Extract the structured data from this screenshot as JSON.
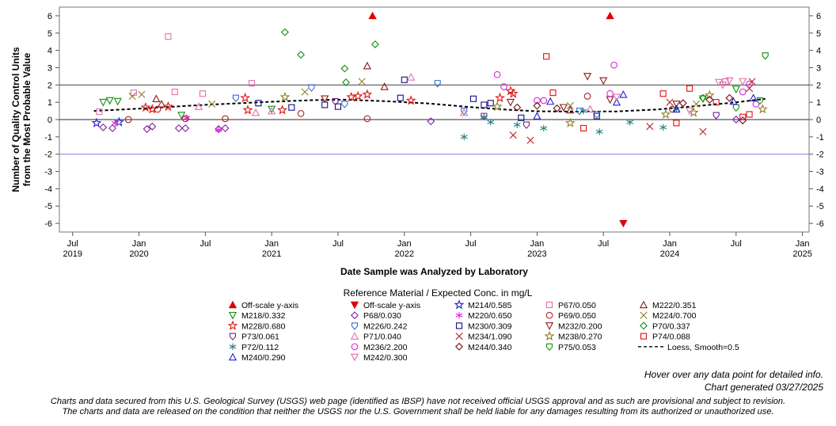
{
  "chart_data": {
    "type": "scatter",
    "title": "",
    "xlabel": "Date Sample was Analyzed by Laboratory",
    "ylabel_lines": [
      "Number of Quality Control Units",
      "from the Most Probable Value"
    ],
    "ylim": [
      -6.5,
      6.5
    ],
    "yticks": [
      6,
      5,
      4,
      3,
      2,
      1,
      0,
      -1,
      -2,
      -3,
      -4,
      -5,
      -6
    ],
    "xlim": [
      2019.4,
      2025.05
    ],
    "xticks": [
      {
        "x": 2019.5,
        "label": "Jul",
        "year": "2019"
      },
      {
        "x": 2020.0,
        "label": "Jan",
        "year": "2020"
      },
      {
        "x": 2020.5,
        "label": "Jul",
        "year": ""
      },
      {
        "x": 2021.0,
        "label": "Jan",
        "year": "2021"
      },
      {
        "x": 2021.5,
        "label": "Jul",
        "year": ""
      },
      {
        "x": 2022.0,
        "label": "Jan",
        "year": "2022"
      },
      {
        "x": 2022.5,
        "label": "Jul",
        "year": ""
      },
      {
        "x": 2023.0,
        "label": "Jan",
        "year": "2023"
      },
      {
        "x": 2023.5,
        "label": "Jul",
        "year": ""
      },
      {
        "x": 2024.0,
        "label": "Jan",
        "year": "2024"
      },
      {
        "x": 2024.5,
        "label": "Jul",
        "year": ""
      },
      {
        "x": 2025.0,
        "label": "Jan",
        "year": "2025"
      }
    ],
    "reference_lines": [
      {
        "y": 2,
        "color": "#555555"
      },
      {
        "y": 0,
        "color": "#555555"
      },
      {
        "y": -2,
        "color": "#8c8cf0"
      }
    ],
    "legend_title": "Reference Material / Expected Conc. in mg/L",
    "legend": [
      {
        "id": "offup",
        "label": "Off-scale y-axis",
        "marker": "tri-up-filled",
        "color": "#e00000"
      },
      {
        "id": "offdown",
        "label": "Off-scale y-axis",
        "marker": "tri-down-filled",
        "color": "#e00000"
      },
      {
        "id": "M214",
        "label": "M214/0.585",
        "marker": "star",
        "color": "#2020d0"
      },
      {
        "id": "P67",
        "label": "P67/0.050",
        "marker": "square",
        "color": "#e070b0"
      },
      {
        "id": "M222",
        "label": "M222/0.351",
        "marker": "tri-up",
        "color": "#8b1a1a"
      },
      {
        "id": "M218",
        "label": "M218/0.332",
        "marker": "tri-down",
        "color": "#109010"
      },
      {
        "id": "P68",
        "label": "P68/0.030",
        "marker": "diamond",
        "color": "#8020a0"
      },
      {
        "id": "M220",
        "label": "M220/0.650",
        "marker": "asterisk",
        "color": "#e020e0"
      },
      {
        "id": "P69",
        "label": "P69/0.050",
        "marker": "circle",
        "color": "#b02020"
      },
      {
        "id": "M224",
        "label": "M224/0.700",
        "marker": "x",
        "color": "#908020"
      },
      {
        "id": "M228",
        "label": "M228/0.680",
        "marker": "star",
        "color": "#e01010"
      },
      {
        "id": "M226",
        "label": "M226/0.242",
        "marker": "shield",
        "color": "#3070d0"
      },
      {
        "id": "M230",
        "label": "M230/0.309",
        "marker": "square",
        "color": "#101080"
      },
      {
        "id": "M232",
        "label": "M232/0.200",
        "marker": "tri-down",
        "color": "#8b1a1a"
      },
      {
        "id": "P70",
        "label": "P70/0.337",
        "marker": "diamond",
        "color": "#109010"
      },
      {
        "id": "P73",
        "label": "P73/0.061",
        "marker": "shield",
        "color": "#702090"
      },
      {
        "id": "P71",
        "label": "P71/0.040",
        "marker": "tri-up",
        "color": "#e070b0"
      },
      {
        "id": "M234",
        "label": "M234/1.090",
        "marker": "x",
        "color": "#c02020"
      },
      {
        "id": "M238",
        "label": "M238/0.270",
        "marker": "star",
        "color": "#908020"
      },
      {
        "id": "P74",
        "label": "P74/0.088",
        "marker": "square",
        "color": "#e01010"
      },
      {
        "id": "P72",
        "label": "P72/0.112",
        "marker": "asterisk",
        "color": "#208080"
      },
      {
        "id": "M236",
        "label": "M236/2.200",
        "marker": "circle",
        "color": "#e020e0"
      },
      {
        "id": "M244",
        "label": "M244/0.340",
        "marker": "diamond",
        "color": "#701010"
      },
      {
        "id": "P75",
        "label": "P75/0.053",
        "marker": "shield",
        "color": "#109010"
      },
      {
        "id": "loess",
        "label": "Loess, Smooth=0.5",
        "marker": "dashline",
        "color": "#000000"
      },
      {
        "id": "M240",
        "label": "M240/0.290",
        "marker": "tri-up",
        "color": "#2020d0"
      },
      {
        "id": "M242",
        "label": "M242/0.300",
        "marker": "tri-down",
        "color": "#e070b0"
      }
    ],
    "loess": [
      [
        2019.66,
        0.5
      ],
      [
        2020.0,
        0.63
      ],
      [
        2020.5,
        0.85
      ],
      [
        2020.9,
        1.0
      ],
      [
        2021.3,
        1.12
      ],
      [
        2021.55,
        1.15
      ],
      [
        2021.9,
        1.05
      ],
      [
        2022.2,
        0.92
      ],
      [
        2022.5,
        0.72
      ],
      [
        2022.8,
        0.56
      ],
      [
        2023.0,
        0.48
      ],
      [
        2023.3,
        0.46
      ],
      [
        2023.6,
        0.47
      ],
      [
        2023.9,
        0.58
      ],
      [
        2024.2,
        0.78
      ],
      [
        2024.5,
        1.0
      ],
      [
        2024.72,
        1.2
      ]
    ],
    "points": [
      {
        "s": "M214",
        "x": 2019.68,
        "y": -0.2
      },
      {
        "s": "M214",
        "x": 2019.85,
        "y": -0.15
      },
      {
        "s": "M218",
        "x": 2019.73,
        "y": 1.0
      },
      {
        "s": "M218",
        "x": 2019.78,
        "y": 1.1
      },
      {
        "s": "M218",
        "x": 2019.84,
        "y": 1.05
      },
      {
        "s": "M218",
        "x": 2020.32,
        "y": 0.25
      },
      {
        "s": "M218",
        "x": 2021.0,
        "y": 0.6
      },
      {
        "s": "M218",
        "x": 2024.25,
        "y": 1.2
      },
      {
        "s": "M218",
        "x": 2024.5,
        "y": 1.75
      },
      {
        "s": "P67",
        "x": 2019.7,
        "y": 0.45
      },
      {
        "s": "P67",
        "x": 2019.96,
        "y": 1.55
      },
      {
        "s": "P67",
        "x": 2020.22,
        "y": 4.8
      },
      {
        "s": "P67",
        "x": 2020.27,
        "y": 1.6
      },
      {
        "s": "P67",
        "x": 2020.48,
        "y": 1.5
      },
      {
        "s": "P67",
        "x": 2020.85,
        "y": 2.1
      },
      {
        "s": "P67",
        "x": 2024.42,
        "y": 2.2
      },
      {
        "s": "P68",
        "x": 2019.73,
        "y": -0.45
      },
      {
        "s": "P68",
        "x": 2019.8,
        "y": -0.5
      },
      {
        "s": "P68",
        "x": 2020.06,
        "y": -0.55
      },
      {
        "s": "P68",
        "x": 2020.1,
        "y": -0.4
      },
      {
        "s": "P68",
        "x": 2020.3,
        "y": -0.5
      },
      {
        "s": "P68",
        "x": 2020.35,
        "y": -0.5
      },
      {
        "s": "P68",
        "x": 2020.6,
        "y": -0.55
      },
      {
        "s": "P68",
        "x": 2020.65,
        "y": -0.5
      },
      {
        "s": "P68",
        "x": 2022.2,
        "y": -0.1
      },
      {
        "s": "P68",
        "x": 2024.5,
        "y": 0.0
      },
      {
        "s": "M220",
        "x": 2019.82,
        "y": -0.2
      },
      {
        "s": "M220",
        "x": 2020.6,
        "y": -0.6
      },
      {
        "s": "M220",
        "x": 2020.36,
        "y": 0.1
      },
      {
        "s": "P69",
        "x": 2019.92,
        "y": 0.0
      },
      {
        "s": "P69",
        "x": 2020.14,
        "y": 0.6
      },
      {
        "s": "P69",
        "x": 2020.35,
        "y": 0.05
      },
      {
        "s": "P69",
        "x": 2020.65,
        "y": 0.05
      },
      {
        "s": "P69",
        "x": 2021.22,
        "y": 0.35
      },
      {
        "s": "P69",
        "x": 2021.72,
        "y": 0.05
      },
      {
        "s": "P69",
        "x": 2023.38,
        "y": 1.35
      },
      {
        "s": "P69",
        "x": 2024.02,
        "y": 0.6
      },
      {
        "s": "M224",
        "x": 2019.95,
        "y": 1.35
      },
      {
        "s": "M224",
        "x": 2020.02,
        "y": 1.45
      },
      {
        "s": "M224",
        "x": 2020.55,
        "y": 0.9
      },
      {
        "s": "M224",
        "x": 2021.25,
        "y": 1.6
      },
      {
        "s": "M224",
        "x": 2021.68,
        "y": 2.2
      },
      {
        "s": "M224",
        "x": 2023.25,
        "y": 0.8
      },
      {
        "s": "M224",
        "x": 2024.2,
        "y": 0.9
      },
      {
        "s": "M222",
        "x": 2020.13,
        "y": 1.2
      },
      {
        "s": "M222",
        "x": 2020.17,
        "y": 0.9
      },
      {
        "s": "M222",
        "x": 2021.72,
        "y": 3.1
      },
      {
        "s": "M222",
        "x": 2021.85,
        "y": 1.9
      },
      {
        "s": "M222",
        "x": 2023.25,
        "y": 0.55
      },
      {
        "s": "M228",
        "x": 2020.05,
        "y": 0.7
      },
      {
        "s": "M228",
        "x": 2020.1,
        "y": 0.6
      },
      {
        "s": "M228",
        "x": 2020.22,
        "y": 0.75
      },
      {
        "s": "M228",
        "x": 2020.8,
        "y": 1.25
      },
      {
        "s": "M228",
        "x": 2020.82,
        "y": 0.55
      },
      {
        "s": "M228",
        "x": 2021.08,
        "y": 0.55
      },
      {
        "s": "M228",
        "x": 2021.6,
        "y": 1.3
      },
      {
        "s": "M228",
        "x": 2021.65,
        "y": 1.35
      },
      {
        "s": "M228",
        "x": 2021.72,
        "y": 1.45
      },
      {
        "s": "M228",
        "x": 2022.05,
        "y": 1.1
      },
      {
        "s": "M228",
        "x": 2022.72,
        "y": 1.25
      },
      {
        "s": "M228",
        "x": 2022.8,
        "y": 1.65
      },
      {
        "s": "M228",
        "x": 2022.82,
        "y": 1.5
      },
      {
        "s": "M226",
        "x": 2021.3,
        "y": 1.85
      },
      {
        "s": "M226",
        "x": 2022.25,
        "y": 2.1
      },
      {
        "s": "M226",
        "x": 2021.55,
        "y": 0.9
      },
      {
        "s": "M226",
        "x": 2022.45,
        "y": 0.5
      },
      {
        "s": "M226",
        "x": 2023.32,
        "y": 0.5
      },
      {
        "s": "M226",
        "x": 2023.45,
        "y": 0.3
      },
      {
        "s": "M226",
        "x": 2020.73,
        "y": 1.25
      },
      {
        "s": "M230",
        "x": 2020.9,
        "y": 0.95
      },
      {
        "s": "M230",
        "x": 2021.15,
        "y": 0.7
      },
      {
        "s": "M230",
        "x": 2021.4,
        "y": 0.85
      },
      {
        "s": "M230",
        "x": 2021.5,
        "y": 0.75
      },
      {
        "s": "M230",
        "x": 2021.97,
        "y": 1.25
      },
      {
        "s": "M230",
        "x": 2022.0,
        "y": 2.3
      },
      {
        "s": "M230",
        "x": 2022.52,
        "y": 1.2
      },
      {
        "s": "M230",
        "x": 2022.6,
        "y": 0.85
      },
      {
        "s": "M230",
        "x": 2022.65,
        "y": 0.95
      },
      {
        "s": "M230",
        "x": 2022.88,
        "y": 0.1
      },
      {
        "s": "M230",
        "x": 2023.45,
        "y": 0.2
      },
      {
        "s": "M232",
        "x": 2021.4,
        "y": 1.2
      },
      {
        "s": "M232",
        "x": 2022.8,
        "y": 1.0
      },
      {
        "s": "M232",
        "x": 2023.2,
        "y": 0.7
      },
      {
        "s": "M232",
        "x": 2023.38,
        "y": 2.5
      },
      {
        "s": "M232",
        "x": 2023.5,
        "y": 2.25
      },
      {
        "s": "M232",
        "x": 2023.55,
        "y": 1.15
      },
      {
        "s": "M232",
        "x": 2024.05,
        "y": 0.9
      },
      {
        "s": "P70",
        "x": 2021.1,
        "y": 5.05
      },
      {
        "s": "P70",
        "x": 2021.22,
        "y": 3.75
      },
      {
        "s": "P70",
        "x": 2021.55,
        "y": 2.95
      },
      {
        "s": "P70",
        "x": 2021.56,
        "y": 2.15
      },
      {
        "s": "P70",
        "x": 2021.78,
        "y": 4.35
      },
      {
        "s": "P70",
        "x": 2024.25,
        "y": 1.25
      },
      {
        "s": "P73",
        "x": 2021.48,
        "y": 1.05
      },
      {
        "s": "P73",
        "x": 2022.6,
        "y": 0.2
      },
      {
        "s": "P73",
        "x": 2022.92,
        "y": -0.3
      },
      {
        "s": "P73",
        "x": 2024.35,
        "y": 0.25
      },
      {
        "s": "P71",
        "x": 2020.45,
        "y": 0.75
      },
      {
        "s": "P71",
        "x": 2020.88,
        "y": 0.4
      },
      {
        "s": "P71",
        "x": 2021.0,
        "y": 0.5
      },
      {
        "s": "P71",
        "x": 2022.05,
        "y": 2.45
      },
      {
        "s": "P71",
        "x": 2022.45,
        "y": 0.4
      },
      {
        "s": "P71",
        "x": 2023.4,
        "y": 0.6
      },
      {
        "s": "M234",
        "x": 2022.82,
        "y": -0.9
      },
      {
        "s": "M234",
        "x": 2022.95,
        "y": -1.2
      },
      {
        "s": "M234",
        "x": 2023.85,
        "y": -0.4
      },
      {
        "s": "M234",
        "x": 2024.25,
        "y": -0.7
      },
      {
        "s": "M234",
        "x": 2024.62,
        "y": 2.2
      },
      {
        "s": "M234",
        "x": 2024.6,
        "y": 1.8
      },
      {
        "s": "M234",
        "x": 2024.0,
        "y": 1.0
      },
      {
        "s": "M238",
        "x": 2021.1,
        "y": 1.3
      },
      {
        "s": "M238",
        "x": 2022.7,
        "y": 0.75
      },
      {
        "s": "M238",
        "x": 2023.25,
        "y": -0.2
      },
      {
        "s": "M238",
        "x": 2023.97,
        "y": 0.3
      },
      {
        "s": "M238",
        "x": 2024.18,
        "y": 0.4
      },
      {
        "s": "M238",
        "x": 2024.3,
        "y": 1.4
      },
      {
        "s": "M238",
        "x": 2024.7,
        "y": 0.6
      },
      {
        "s": "P74",
        "x": 2023.07,
        "y": 3.65
      },
      {
        "s": "P74",
        "x": 2023.12,
        "y": 1.55
      },
      {
        "s": "P74",
        "x": 2023.35,
        "y": -0.5
      },
      {
        "s": "P74",
        "x": 2023.95,
        "y": 1.5
      },
      {
        "s": "P74",
        "x": 2024.05,
        "y": -0.2
      },
      {
        "s": "P74",
        "x": 2024.15,
        "y": 1.8
      },
      {
        "s": "P74",
        "x": 2024.35,
        "y": 1.0
      },
      {
        "s": "P74",
        "x": 2024.55,
        "y": 0.15
      },
      {
        "s": "P74",
        "x": 2024.6,
        "y": 0.3
      },
      {
        "s": "P72",
        "x": 2022.45,
        "y": -1.0
      },
      {
        "s": "P72",
        "x": 2022.6,
        "y": 0.15
      },
      {
        "s": "P72",
        "x": 2022.65,
        "y": -0.15
      },
      {
        "s": "P72",
        "x": 2022.85,
        "y": -0.3
      },
      {
        "s": "P72",
        "x": 2023.05,
        "y": -0.5
      },
      {
        "s": "P72",
        "x": 2023.35,
        "y": 0.5
      },
      {
        "s": "P72",
        "x": 2023.47,
        "y": -0.7
      },
      {
        "s": "P72",
        "x": 2023.7,
        "y": -0.15
      },
      {
        "s": "P72",
        "x": 2023.95,
        "y": -0.45
      },
      {
        "s": "P72",
        "x": 2024.05,
        "y": 0.6
      },
      {
        "s": "M236",
        "x": 2022.7,
        "y": 2.6
      },
      {
        "s": "M236",
        "x": 2022.75,
        "y": 1.9
      },
      {
        "s": "M236",
        "x": 2023.0,
        "y": 1.1
      },
      {
        "s": "M236",
        "x": 2023.05,
        "y": 1.1
      },
      {
        "s": "M236",
        "x": 2023.58,
        "y": 3.15
      },
      {
        "s": "M236",
        "x": 2023.55,
        "y": 1.5
      },
      {
        "s": "M236",
        "x": 2024.55,
        "y": 1.6
      },
      {
        "s": "M236",
        "x": 2024.6,
        "y": 2.05
      },
      {
        "s": "M236",
        "x": 2024.65,
        "y": 0.9
      },
      {
        "s": "M244",
        "x": 2022.85,
        "y": 0.7
      },
      {
        "s": "M244",
        "x": 2023.0,
        "y": 0.8
      },
      {
        "s": "M244",
        "x": 2023.15,
        "y": 0.65
      },
      {
        "s": "M244",
        "x": 2024.1,
        "y": 0.95
      },
      {
        "s": "M244",
        "x": 2024.3,
        "y": 1.15
      },
      {
        "s": "M244",
        "x": 2024.45,
        "y": 1.25
      },
      {
        "s": "M244",
        "x": 2024.55,
        "y": -0.05
      },
      {
        "s": "P75",
        "x": 2024.5,
        "y": 0.7
      },
      {
        "s": "P75",
        "x": 2024.72,
        "y": 3.7
      },
      {
        "s": "P75",
        "x": 2024.68,
        "y": 1.1
      },
      {
        "s": "M240",
        "x": 2023.0,
        "y": 0.2
      },
      {
        "s": "M240",
        "x": 2023.1,
        "y": 1.05
      },
      {
        "s": "M240",
        "x": 2023.6,
        "y": 1.0
      },
      {
        "s": "M240",
        "x": 2023.65,
        "y": 1.45
      },
      {
        "s": "M240",
        "x": 2024.05,
        "y": 0.6
      },
      {
        "s": "M240",
        "x": 2024.48,
        "y": 1.05
      },
      {
        "s": "M240",
        "x": 2024.63,
        "y": 1.25
      },
      {
        "s": "M242",
        "x": 2023.6,
        "y": 1.3
      },
      {
        "s": "M242",
        "x": 2024.37,
        "y": 2.15
      },
      {
        "s": "M242",
        "x": 2024.4,
        "y": 2.0
      },
      {
        "s": "M242",
        "x": 2024.45,
        "y": 2.25
      },
      {
        "s": "M242",
        "x": 2024.55,
        "y": 2.2
      },
      {
        "s": "M242",
        "x": 2024.15,
        "y": 0.5
      },
      {
        "s": "offup",
        "x": 2021.76,
        "y": 6.0
      },
      {
        "s": "offup",
        "x": 2023.55,
        "y": 6.0
      },
      {
        "s": "offdown",
        "x": 2023.65,
        "y": -6.0
      }
    ]
  },
  "footer": {
    "hover_note": "Hover over any data point for detailed info.",
    "generated": "Chart generated 03/27/2025",
    "disclaimer_1": "Charts and data secured from this U.S. Geological Survey (USGS) web page (identified as IBSP) have not received official USGS approval and as such are provisional and subject to revision.",
    "disclaimer_2": "The charts and data are released on the condition that neither the USGS nor the U.S. Government shall be held liable for any damages resulting from its authorized or unauthorized use."
  }
}
